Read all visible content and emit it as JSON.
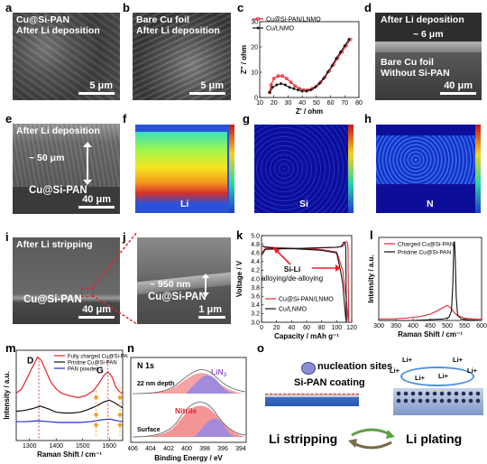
{
  "panels": {
    "a": {
      "label": "a",
      "title1": "Cu@Si-PAN",
      "title2": "After Li deposition",
      "scale": "5 μm"
    },
    "b": {
      "label": "b",
      "title1": "Bare Cu foil",
      "title2": "After Li deposition",
      "scale": "5 μm"
    },
    "c": {
      "label": "c"
    },
    "d": {
      "label": "d",
      "top": "After Li deposition",
      "thickness": "~ 6 μm",
      "bottom1": "Bare Cu foil",
      "bottom2": "Without Si-PAN",
      "scale": "40 μm"
    },
    "e": {
      "label": "e",
      "top": "After Li deposition",
      "thickness": "~ 50 μm",
      "bottom": "Cu@Si-PAN",
      "scale": "40 μm"
    },
    "f": {
      "label": "f",
      "element": "Li",
      "xlabel": "X [μm]",
      "ylabel": "Y [μm]"
    },
    "g": {
      "label": "g",
      "element": "Si",
      "xlabel": "X [μm]",
      "ylabel": "Y [μm]"
    },
    "h": {
      "label": "h",
      "element": "N",
      "xlabel": "X [μm]",
      "ylabel": "Y [μm]"
    },
    "i": {
      "label": "i",
      "top": "After Li stripping",
      "bottom": "Cu@Si-PAN",
      "scale": "40 μm"
    },
    "j": {
      "label": "j",
      "thickness": "~ 950 nm",
      "bottom": "Cu@Si-PAN",
      "scale": "1 μm"
    },
    "k": {
      "label": "k",
      "annot1": "Si-Li",
      "annot2": "alloying/de-alloying"
    },
    "l": {
      "label": "l"
    },
    "m": {
      "label": "m",
      "peakD": "D",
      "peakG": "G"
    },
    "n": {
      "label": "n",
      "title": "N 1s",
      "depth": "22 nm depth",
      "surface": "Surface",
      "lin3": "LiN",
      "lin3sub": "3",
      "nitrile": "Nitrile",
      "xlabel": "Binding Energy / eV",
      "xticks": [
        "406",
        "404",
        "402",
        "400",
        "398",
        "396",
        "394"
      ]
    },
    "o": {
      "label": "o",
      "nucleation": "nucleation sites",
      "coating": "Si-PAN coating",
      "li_plus": "Li+",
      "stripping": "Li stripping",
      "plating": "Li plating"
    }
  },
  "colors": {
    "red": "#e8212b",
    "black": "#111111",
    "blue": "#1f2fd0"
  },
  "chart_data": [
    {
      "panel": "c",
      "type": "line",
      "xlabel": "Z' / ohm",
      "ylabel": "Z'' / ohm",
      "xlim": [
        10,
        80
      ],
      "ylim": [
        0,
        30
      ],
      "xticks": [
        10,
        20,
        30,
        40,
        50,
        60,
        70,
        80
      ],
      "yticks": [
        0,
        10,
        20,
        30
      ],
      "legend": "top-left",
      "series": [
        {
          "name": "Cu@Si-PAN/LNMO",
          "color": "#e8212b",
          "marker": "circle",
          "x": [
            17,
            18,
            20,
            23,
            26,
            29,
            32,
            35,
            38,
            41,
            44,
            47,
            50,
            53,
            56,
            59,
            62,
            65,
            68,
            71,
            74
          ],
          "y": [
            2,
            5,
            7.5,
            8.5,
            8.5,
            7.5,
            6,
            4.5,
            3.5,
            3,
            3,
            3.5,
            4.5,
            6,
            8,
            10.5,
            13,
            15.5,
            18,
            20.5,
            23
          ]
        },
        {
          "name": "Cu/LNMO",
          "color": "#111111",
          "marker": "diamond",
          "x": [
            17,
            19,
            22,
            25,
            28,
            31,
            34,
            37,
            40,
            43,
            46,
            49,
            52,
            55,
            58,
            61,
            64,
            67,
            70,
            73
          ],
          "y": [
            2,
            4,
            5,
            5.5,
            5,
            4,
            3.5,
            3,
            2.5,
            2.5,
            3,
            4,
            5.5,
            7.5,
            10,
            12.5,
            15.5,
            18,
            20.5,
            23
          ]
        }
      ]
    },
    {
      "panel": "k",
      "type": "line",
      "xlabel": "Capacity / mAh g-1",
      "ylabel": "Voltage / V",
      "xlim": [
        0,
        120
      ],
      "ylim": [
        3.0,
        5.0
      ],
      "xticks": [
        0,
        20,
        40,
        60,
        80,
        100,
        120
      ],
      "yticks": [
        3.0,
        3.2,
        3.4,
        3.6,
        3.8,
        4.0,
        4.2,
        4.4,
        4.6,
        4.8,
        5.0
      ],
      "legend": "bottom-left",
      "series": [
        {
          "name": "Cu@Si-PAN/LNMO",
          "color": "#e8212b",
          "x": [
            0,
            5,
            20,
            40,
            60,
            80,
            100,
            108,
            110,
            112,
            113,
            114,
            115,
            116,
            115,
            113,
            110,
            108,
            100,
            80,
            60,
            40,
            20,
            5,
            1
          ],
          "y": [
            4.6,
            4.7,
            4.7,
            4.7,
            4.71,
            4.72,
            4.73,
            4.75,
            4.8,
            4.85,
            4.86,
            4.85,
            4.76,
            3.0,
            3.1,
            3.5,
            3.9,
            4.2,
            4.62,
            4.68,
            4.7,
            4.71,
            4.72,
            4.74,
            4.76
          ]
        },
        {
          "name": "Cu/LNMO",
          "color": "#111111",
          "x": [
            0,
            5,
            20,
            40,
            60,
            80,
            100,
            106,
            108,
            109,
            110,
            111,
            112,
            113,
            112,
            110,
            108,
            105,
            100,
            80,
            60,
            40,
            20,
            5,
            1
          ],
          "y": [
            4.55,
            4.68,
            4.69,
            4.7,
            4.71,
            4.72,
            4.73,
            4.75,
            4.8,
            4.84,
            4.85,
            4.84,
            4.75,
            3.0,
            3.1,
            3.5,
            3.9,
            4.2,
            4.6,
            4.66,
            4.68,
            4.7,
            4.71,
            4.73,
            4.76
          ]
        }
      ]
    },
    {
      "panel": "l",
      "type": "line",
      "xlabel": "Raman Shift / cm-1",
      "ylabel": "Intensity / a.u.",
      "xlim": [
        300,
        600
      ],
      "xticks": [
        300,
        350,
        400,
        450,
        500,
        550,
        600
      ],
      "legend": "top-left",
      "series": [
        {
          "name": "Charged Cu@Si-PAN",
          "color": "#e8212b",
          "x": [
            300,
            340,
            380,
            420,
            450,
            470,
            490,
            500,
            510,
            520,
            530,
            550,
            580,
            600
          ],
          "y": [
            0.02,
            0.02,
            0.03,
            0.05,
            0.08,
            0.12,
            0.17,
            0.19,
            0.16,
            0.1,
            0.06,
            0.03,
            0.02,
            0.02
          ]
        },
        {
          "name": "Pristine Cu@Si-PAN",
          "color": "#111111",
          "x": [
            300,
            350,
            400,
            450,
            490,
            505,
            512,
            516,
            519,
            521,
            523,
            526,
            530,
            540,
            560,
            600
          ],
          "y": [
            0.0,
            0.0,
            0.0,
            0.01,
            0.02,
            0.04,
            0.12,
            0.45,
            0.95,
            1.0,
            0.8,
            0.3,
            0.07,
            0.02,
            0.01,
            0.0
          ]
        }
      ]
    },
    {
      "panel": "m",
      "type": "line",
      "xlabel": "Raman Shift / cm-1",
      "ylabel": "Intensity / a.u.",
      "xlim": [
        1250,
        1650
      ],
      "xticks": [
        1300,
        1400,
        1500,
        1600
      ],
      "legend": "top-right",
      "series": [
        {
          "name": "Fully charged Cu@Si-PAN",
          "color": "#e8212b",
          "x": [
            1250,
            1270,
            1290,
            1310,
            1330,
            1345,
            1360,
            1380,
            1400,
            1420,
            1450,
            1480,
            1510,
            1540,
            1560,
            1580,
            1595,
            1610,
            1625,
            1640,
            1650
          ],
          "y": [
            0.55,
            0.6,
            0.72,
            0.85,
            0.97,
            0.93,
            0.82,
            0.68,
            0.6,
            0.55,
            0.52,
            0.5,
            0.52,
            0.58,
            0.66,
            0.76,
            0.8,
            0.74,
            0.62,
            0.56,
            0.55
          ]
        },
        {
          "name": "Pristine Cu@Si-PAN",
          "color": "#111111",
          "x": [
            1250,
            1280,
            1310,
            1340,
            1370,
            1400,
            1430,
            1460,
            1490,
            1520,
            1550,
            1580,
            1600,
            1620,
            1650
          ],
          "y": [
            0.34,
            0.35,
            0.37,
            0.4,
            0.37,
            0.33,
            0.32,
            0.32,
            0.33,
            0.36,
            0.4,
            0.45,
            0.47,
            0.44,
            0.38
          ]
        },
        {
          "name": "PAN powder",
          "color": "#1f2fd0",
          "x": [
            1250,
            1290,
            1330,
            1370,
            1410,
            1450,
            1490,
            1530,
            1570,
            1600,
            1630,
            1650
          ],
          "y": [
            0.22,
            0.22,
            0.23,
            0.22,
            0.21,
            0.21,
            0.21,
            0.22,
            0.24,
            0.25,
            0.23,
            0.22
          ]
        }
      ]
    }
  ]
}
